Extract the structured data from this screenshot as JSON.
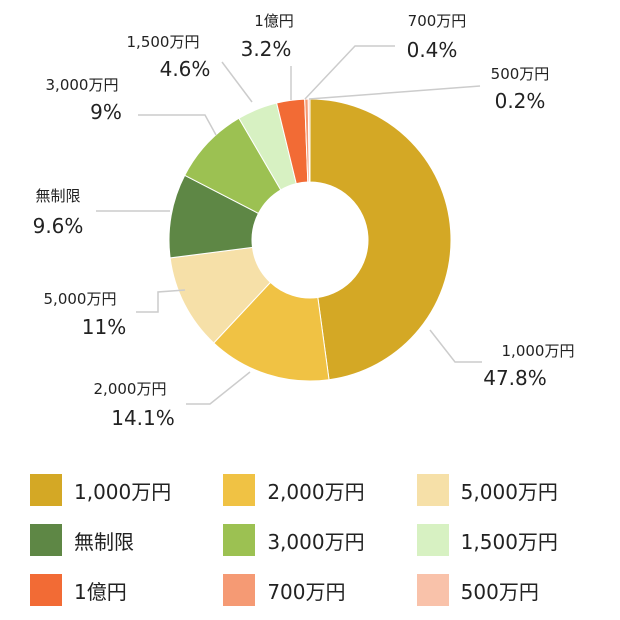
{
  "chart_data": {
    "type": "pie",
    "variant": "donut",
    "title": "",
    "start": "top, clockwise",
    "legend_position": "bottom",
    "slices": [
      {
        "label": "1,000万円",
        "value": 47.8,
        "pct_label": "47.8%",
        "color": "#d4a825"
      },
      {
        "label": "2,000万円",
        "value": 14.1,
        "pct_label": "14.1%",
        "color": "#f0c244"
      },
      {
        "label": "5,000万円",
        "value": 11,
        "pct_label": "11%",
        "color": "#f6e0a8"
      },
      {
        "label": "無制限",
        "value": 9.6,
        "pct_label": "9.6%",
        "color": "#5e8745"
      },
      {
        "label": "3,000万円",
        "value": 9,
        "pct_label": "9%",
        "color": "#9cc152"
      },
      {
        "label": "1,500万円",
        "value": 4.6,
        "pct_label": "4.6%",
        "color": "#d7f1c2"
      },
      {
        "label": "1億円",
        "value": 3.2,
        "pct_label": "3.2%",
        "color": "#f26b35"
      },
      {
        "label": "700万円",
        "value": 0.4,
        "pct_label": "0.4%",
        "color": "#f59a74"
      },
      {
        "label": "500万円",
        "value": 0.2,
        "pct_label": "0.2%",
        "color": "#f9c2aa"
      }
    ]
  },
  "legend": {
    "items": [
      {
        "label": "1,000万円",
        "color": "#d4a825"
      },
      {
        "label": "2,000万円",
        "color": "#f0c244"
      },
      {
        "label": "5,000万円",
        "color": "#f6e0a8"
      },
      {
        "label": "無制限",
        "color": "#5e8745"
      },
      {
        "label": "3,000万円",
        "color": "#9cc152"
      },
      {
        "label": "1,500万円",
        "color": "#d7f1c2"
      },
      {
        "label": "1億円",
        "color": "#f26b35"
      },
      {
        "label": "700万円",
        "color": "#f59a74"
      },
      {
        "label": "500万円",
        "color": "#f9c2aa"
      }
    ]
  }
}
